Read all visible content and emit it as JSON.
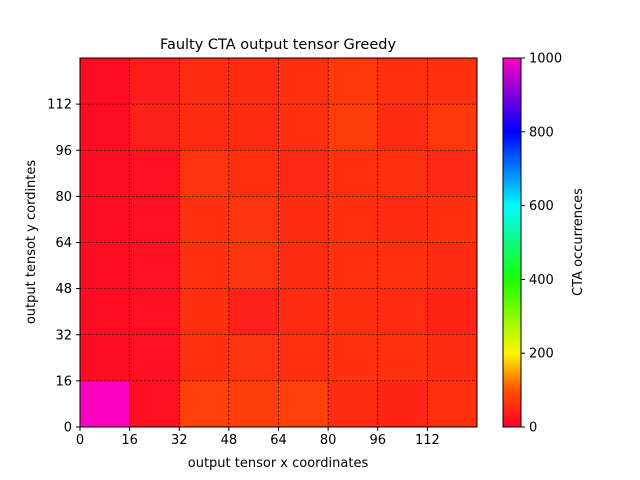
{
  "chart_data": {
    "type": "heatmap",
    "title": "Faulty CTA output tensor Greedy",
    "xlabel": "output tensor x coordinates",
    "ylabel": "output tensot y cordintes",
    "x_edges": [
      0,
      16,
      32,
      48,
      64,
      80,
      96,
      112,
      128
    ],
    "y_edges": [
      0,
      16,
      32,
      48,
      64,
      80,
      96,
      112,
      128
    ],
    "x_ticks": [
      0,
      16,
      32,
      48,
      64,
      80,
      96,
      112
    ],
    "y_ticks": [
      0,
      16,
      32,
      48,
      64,
      80,
      96,
      112
    ],
    "xlim": [
      0,
      128
    ],
    "ylim": [
      0,
      128
    ],
    "rows_bottom_to_top": [
      [
        1000,
        20,
        80,
        75,
        80,
        55,
        45,
        60
      ],
      [
        15,
        20,
        60,
        65,
        60,
        60,
        60,
        55
      ],
      [
        15,
        20,
        60,
        40,
        55,
        60,
        55,
        45
      ],
      [
        15,
        20,
        60,
        65,
        55,
        60,
        60,
        55
      ],
      [
        15,
        20,
        60,
        65,
        55,
        60,
        55,
        60
      ],
      [
        15,
        20,
        65,
        60,
        50,
        60,
        60,
        50
      ],
      [
        15,
        40,
        55,
        55,
        60,
        75,
        55,
        70
      ],
      [
        15,
        35,
        55,
        55,
        60,
        70,
        60,
        60
      ]
    ],
    "grid": true,
    "colorbar": {
      "label": "CTA occurrences",
      "min": 0,
      "max": 1000,
      "ticks": [
        0,
        200,
        400,
        600,
        800,
        1000
      ],
      "colormap": "gist_rainbow_r"
    }
  }
}
